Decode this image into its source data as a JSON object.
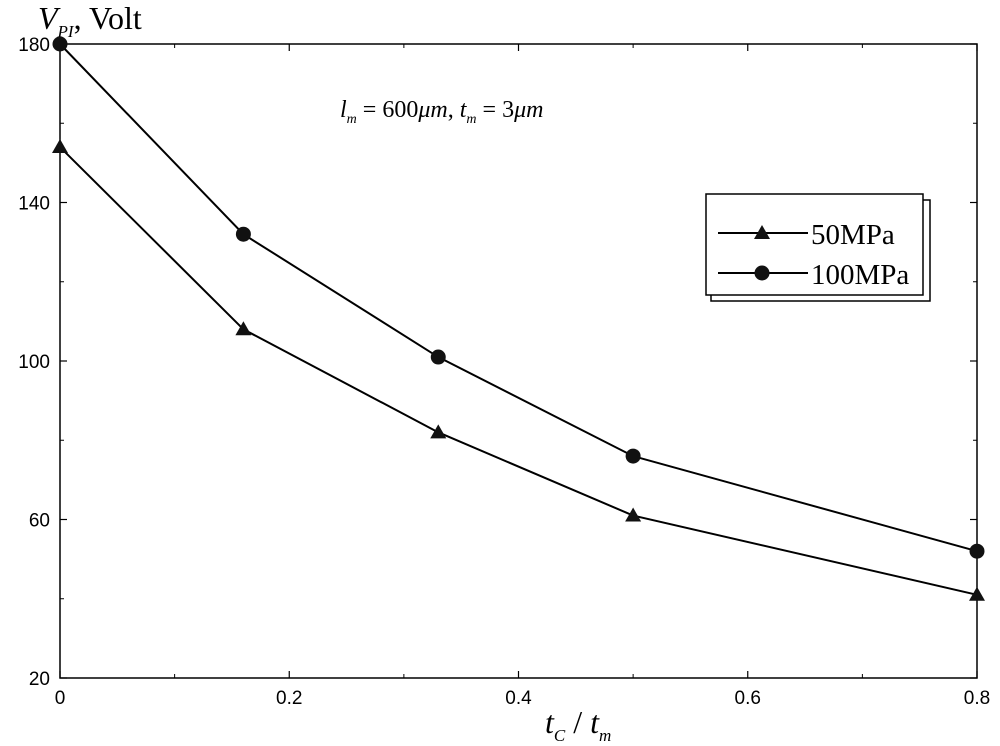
{
  "chart_data": {
    "type": "line",
    "ylabel": {
      "main": "V",
      "sub": "PI",
      "unit": ", Volt"
    },
    "xlabel": {
      "t1": "t",
      "t1_sub": "C",
      "slash": " / ",
      "t2": "t",
      "t2_sub": "m"
    },
    "annotation": {
      "l": "l",
      "l_sub": "m",
      "l_val": " = 600",
      "l_unit": "μm",
      "sep": ", ",
      "t": "t",
      "t_sub": "m",
      "t_val": " = 3",
      "t_unit": "μm"
    },
    "xlim": [
      0,
      0.8
    ],
    "ylim": [
      20,
      180
    ],
    "xticks": [
      "0",
      "0.2",
      "0.4",
      "0.6",
      "0.8"
    ],
    "yticks": [
      "20",
      "60",
      "100",
      "140",
      "180"
    ],
    "x": [
      0,
      0.16,
      0.33,
      0.5,
      0.8
    ],
    "series": [
      {
        "name": "50MPa",
        "marker": "triangle",
        "values": [
          154,
          108,
          82,
          61,
          41
        ]
      },
      {
        "name": "100MPa",
        "marker": "circle",
        "values": [
          180,
          132,
          101,
          76,
          52
        ]
      }
    ],
    "legend_position": "right",
    "grid": false
  }
}
